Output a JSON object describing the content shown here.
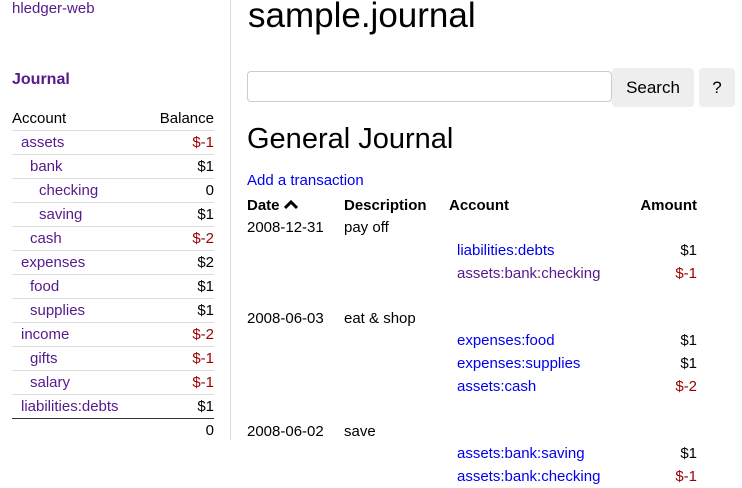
{
  "app_link": "hledger-web",
  "sidebar": {
    "journal_link": "Journal",
    "headers": {
      "account": "Account",
      "balance": "Balance"
    },
    "rows": [
      {
        "account": "assets",
        "balance": "$-1",
        "indent": 1,
        "neg": true
      },
      {
        "account": "bank",
        "balance": "$1",
        "indent": 2,
        "neg": false
      },
      {
        "account": "checking",
        "balance": "0",
        "indent": 3,
        "neg": false
      },
      {
        "account": "saving",
        "balance": "$1",
        "indent": 3,
        "neg": false
      },
      {
        "account": "cash",
        "balance": "$-2",
        "indent": 2,
        "neg": true
      },
      {
        "account": "expenses",
        "balance": "$2",
        "indent": 1,
        "neg": false
      },
      {
        "account": "food",
        "balance": "$1",
        "indent": 2,
        "neg": false
      },
      {
        "account": "supplies",
        "balance": "$1",
        "indent": 2,
        "neg": false
      },
      {
        "account": "income",
        "balance": "$-2",
        "indent": 1,
        "neg": true
      },
      {
        "account": "gifts",
        "balance": "$-1",
        "indent": 2,
        "neg": true
      },
      {
        "account": "salary",
        "balance": "$-1",
        "indent": 2,
        "neg": true
      },
      {
        "account": "liabilities:debts",
        "balance": "$1",
        "indent": 1,
        "neg": false
      }
    ],
    "total": "0"
  },
  "main": {
    "title": "sample.journal",
    "search_value": "",
    "search_label": "Search",
    "help_label": "?",
    "heading": "General Journal",
    "add_link": "Add a transaction",
    "columns": {
      "date": "Date",
      "sort_icon": "chevron-up-icon",
      "description": "Description",
      "account": "Account",
      "amount": "Amount"
    },
    "transactions": [
      {
        "date": "2008-12-31",
        "description": "pay off",
        "postings": [
          {
            "account": "liabilities:debts",
            "amount": "$1",
            "visited": false
          },
          {
            "account": "assets:bank:checking",
            "amount": "$-1",
            "visited": true
          }
        ]
      },
      {
        "date": "2008-06-03",
        "description": "eat & shop",
        "postings": [
          {
            "account": "expenses:food",
            "amount": "$1",
            "visited": false
          },
          {
            "account": "expenses:supplies",
            "amount": "$1",
            "visited": false
          },
          {
            "account": "assets:cash",
            "amount": "$-2",
            "visited": false
          }
        ]
      },
      {
        "date": "2008-06-02",
        "description": "save",
        "postings": [
          {
            "account": "assets:bank:saving",
            "amount": "$1",
            "visited": false
          },
          {
            "account": "assets:bank:checking",
            "amount": "$-1",
            "visited": false
          }
        ]
      }
    ]
  },
  "colors": {
    "visited_link": "#551a8b",
    "link": "#0000ee",
    "negative": "#990000"
  }
}
